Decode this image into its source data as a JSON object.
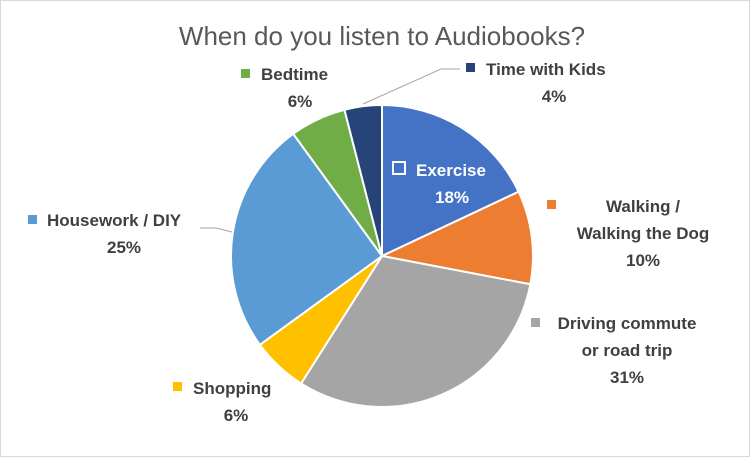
{
  "chart_data": {
    "type": "pie",
    "title": "When do you listen to Audiobooks?",
    "slices": [
      {
        "name": "Exercise",
        "value": 18,
        "label": "18%",
        "color": "#4472C4"
      },
      {
        "name": "Walking / Walking the Dog",
        "value": 10,
        "label": "10%",
        "color": "#ED7D31"
      },
      {
        "name": "Driving commute or road trip",
        "value": 31,
        "label": "31%",
        "color": "#A5A5A5"
      },
      {
        "name": "Shopping",
        "value": 6,
        "label": "6%",
        "color": "#FFC000"
      },
      {
        "name": "Housework / DIY",
        "value": 25,
        "label": "25%",
        "color": "#5B9BD5"
      },
      {
        "name": "Bedtime",
        "value": 6,
        "label": "6%",
        "color": "#70AD47"
      },
      {
        "name": "Time with Kids",
        "value": 4,
        "label": "4%",
        "color": "#264478"
      }
    ],
    "legend": "data labels with legend keys"
  },
  "labels": {
    "exercise": {
      "name": "Exercise",
      "pct": "18%"
    },
    "walking": {
      "line1": "Walking /",
      "line2": "Walking the Dog",
      "pct": "10%"
    },
    "driving": {
      "line1": "Driving commute",
      "line2": "or road trip",
      "pct": "31%"
    },
    "shopping": {
      "name": "Shopping",
      "pct": "6%"
    },
    "housework": {
      "name": "Housework / DIY",
      "pct": "25%"
    },
    "bedtime": {
      "name": "Bedtime",
      "pct": "6%"
    },
    "kids": {
      "name": "Time with Kids",
      "pct": "4%"
    }
  }
}
